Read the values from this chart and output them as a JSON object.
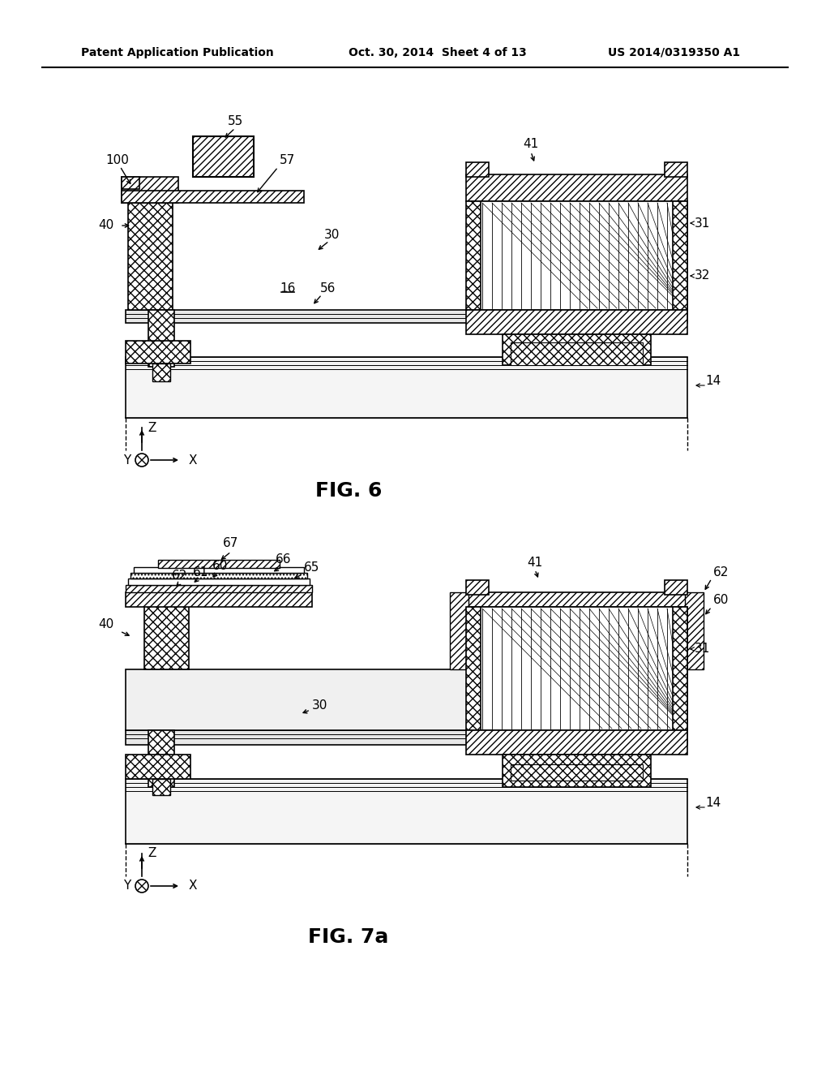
{
  "bg_color": "#ffffff",
  "header_left": "Patent Application Publication",
  "header_center": "Oct. 30, 2014  Sheet 4 of 13",
  "header_right": "US 2014/0319350 A1",
  "fig6_label": "FIG. 6",
  "fig7a_label": "FIG. 7a",
  "lc": "#000000",
  "substrate_fc": "#f0f0f0",
  "hatch_fc": "#ffffff",
  "membrane_fc": "#e8e8e8"
}
